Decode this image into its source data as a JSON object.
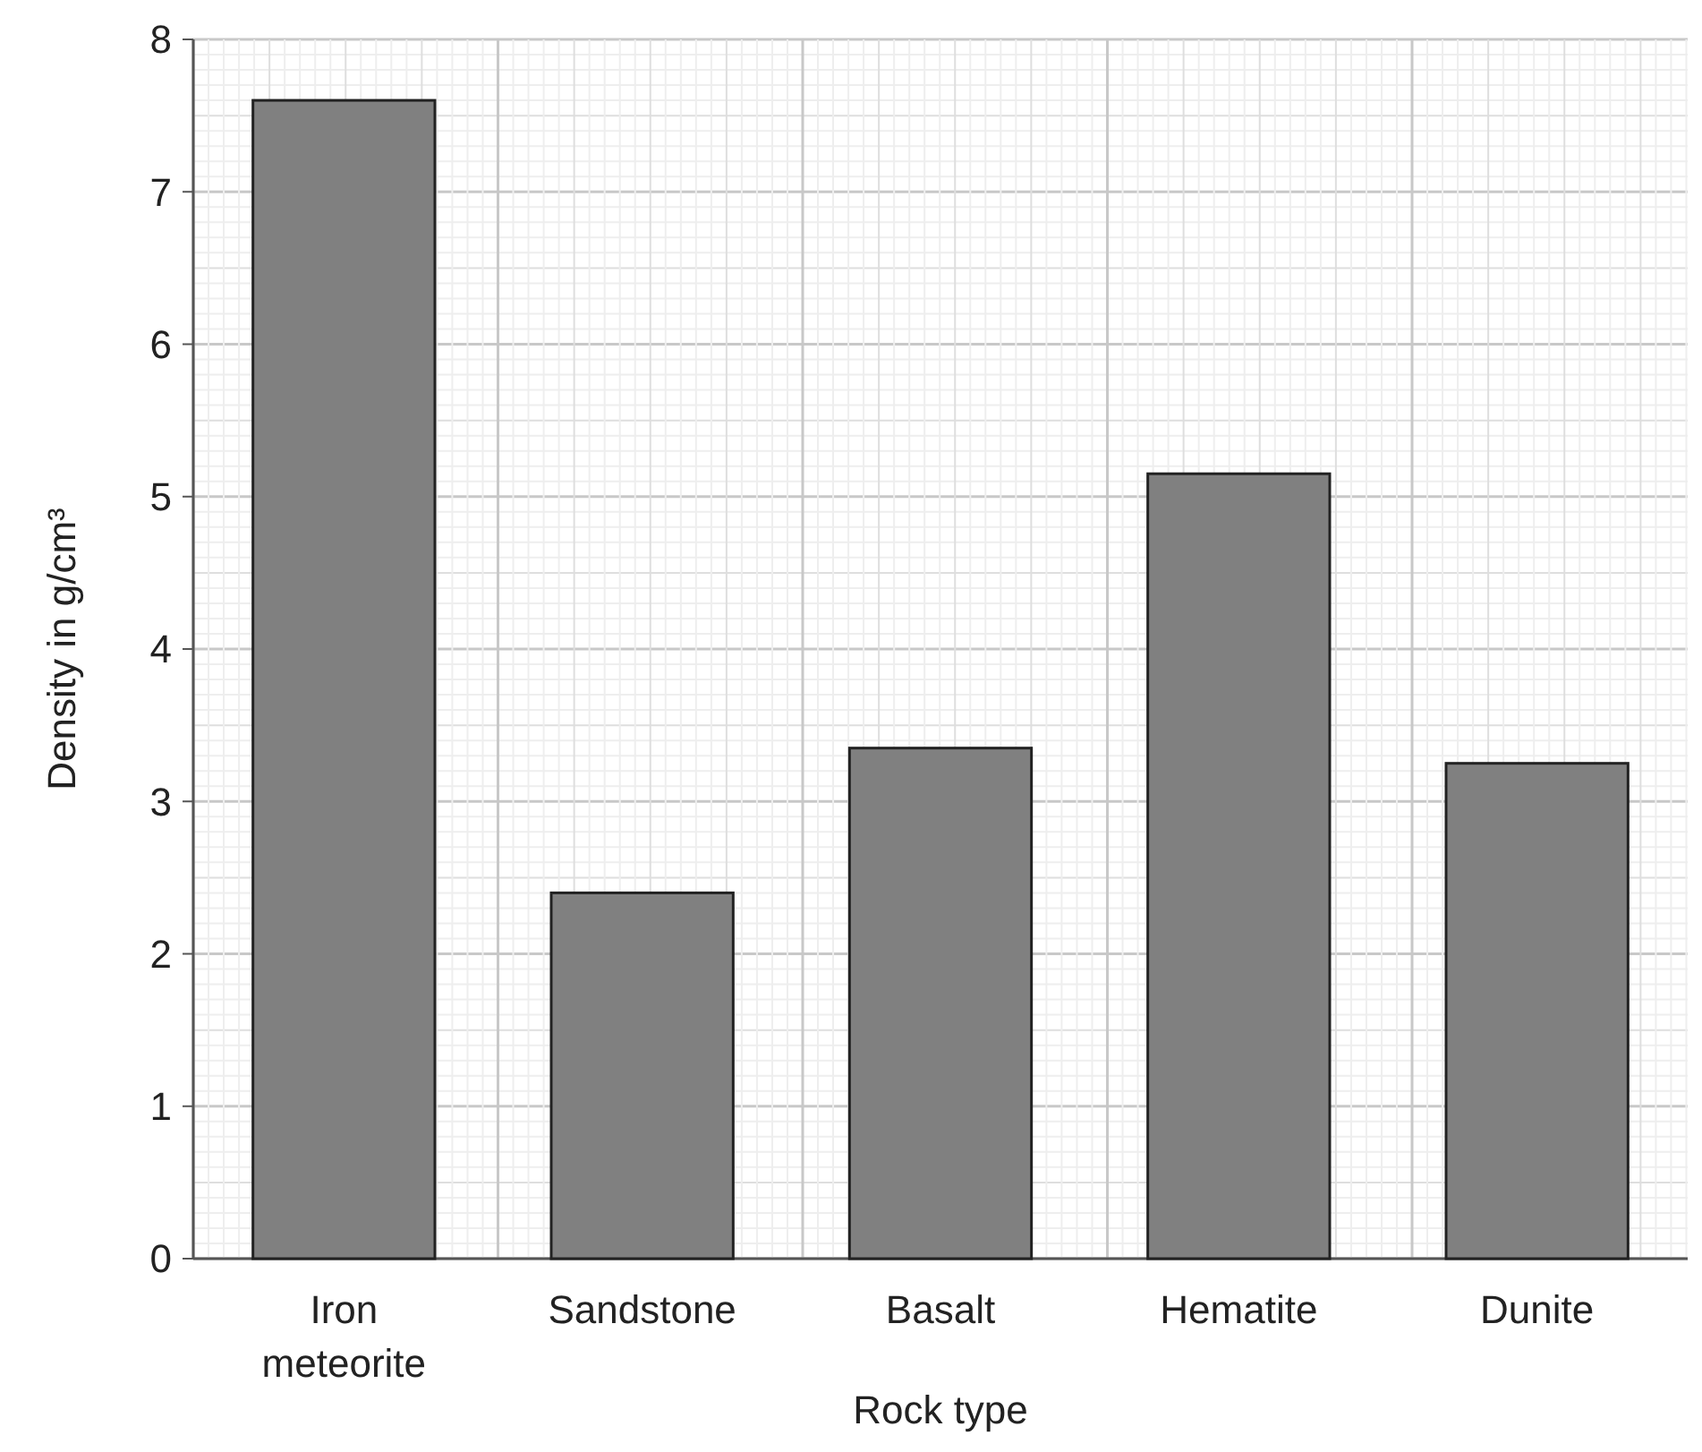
{
  "chart_data": {
    "type": "bar",
    "xlabel": "Rock type",
    "ylabel": "Density in g/cm³",
    "categories": [
      "Iron\nmeteorite",
      "Sandstone",
      "Basalt",
      "Hematite",
      "Dunite"
    ],
    "values": [
      7.6,
      2.4,
      3.35,
      5.15,
      3.25
    ],
    "color": "#808080",
    "ylim": [
      0,
      8
    ],
    "yticks": [
      0,
      1,
      2,
      3,
      4,
      5,
      6,
      7,
      8
    ],
    "grid": true
  }
}
